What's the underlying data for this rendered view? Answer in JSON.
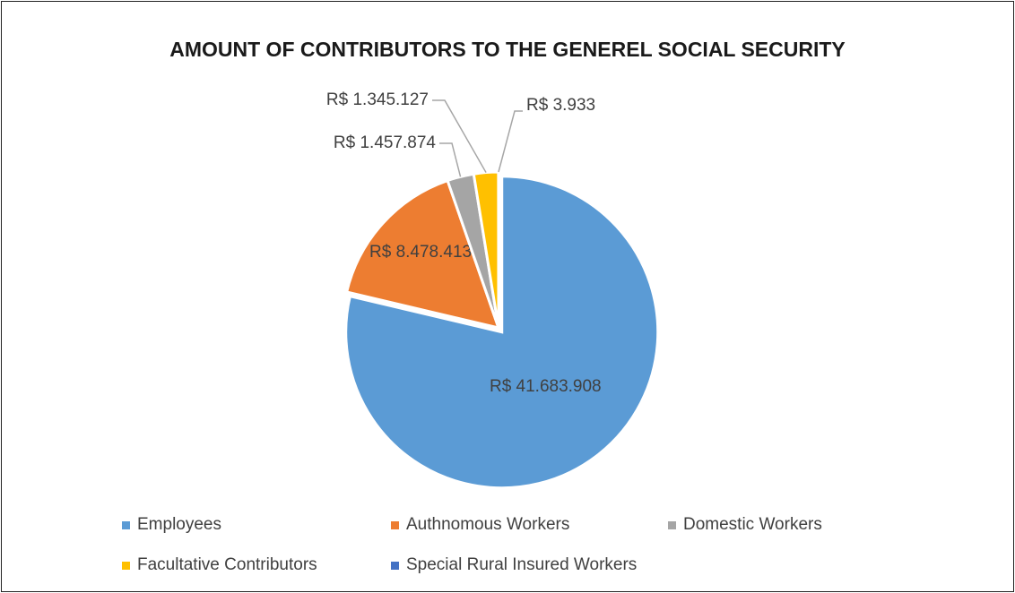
{
  "chart_data": {
    "type": "pie",
    "title": "AMOUNT OF CONTRIBUTORS TO THE GENEREL SOCIAL SECURITY",
    "start_angle_deg": 0,
    "direction": "clockwise",
    "slices": [
      {
        "name": "Employees",
        "value": 41683908,
        "label": "R$ 41.683.908",
        "color": "#5B9BD5",
        "exploded": true
      },
      {
        "name": "Authnomous Workers",
        "value": 8478413,
        "label": "R$ 8.478.413",
        "color": "#ED7D31",
        "exploded": false
      },
      {
        "name": "Domestic Workers",
        "value": 1457874,
        "label": "R$ 1.457.874",
        "color": "#A5A5A5",
        "exploded": false
      },
      {
        "name": "Facultative Contributors",
        "value": 1345127,
        "label": "R$ 1.345.127",
        "color": "#FFC000",
        "exploded": false
      },
      {
        "name": "Special Rural Insured Workers",
        "value": 3933,
        "label": "R$ 3.933",
        "color": "#4472C4",
        "exploded": false
      }
    ],
    "legend": {
      "position": "bottom",
      "items": [
        "Employees",
        "Authnomous Workers",
        "Domestic Workers",
        "Facultative Contributors",
        "Special Rural Insured Workers"
      ]
    }
  }
}
